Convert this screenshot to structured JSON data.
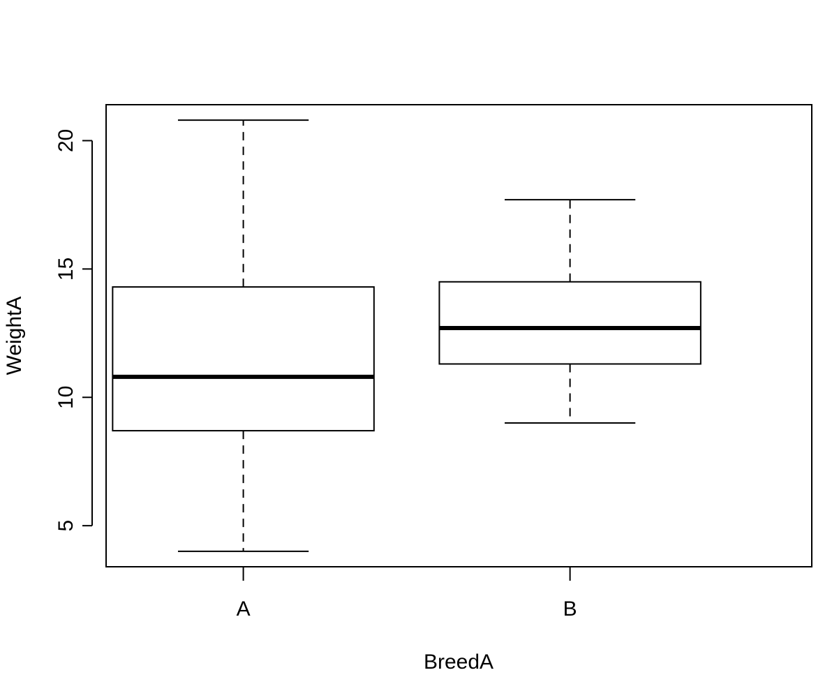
{
  "chart_data": {
    "type": "boxplot",
    "title": "",
    "xlabel": "BreedA",
    "ylabel": "WeightA",
    "ylim": [
      3.4,
      21.4
    ],
    "yticks": [
      5,
      10,
      15,
      20
    ],
    "grid": false,
    "categories": [
      "A",
      "B"
    ],
    "boxes": [
      {
        "category": "A",
        "whisker_low": 4.0,
        "q1": 8.7,
        "median": 10.8,
        "q3": 14.3,
        "whisker_high": 20.8
      },
      {
        "category": "B",
        "whisker_low": 9.0,
        "q1": 11.3,
        "median": 12.7,
        "q3": 14.5,
        "whisker_high": 17.7
      }
    ],
    "colors": {
      "stroke": "#000000",
      "fill": "#ffffff"
    }
  }
}
